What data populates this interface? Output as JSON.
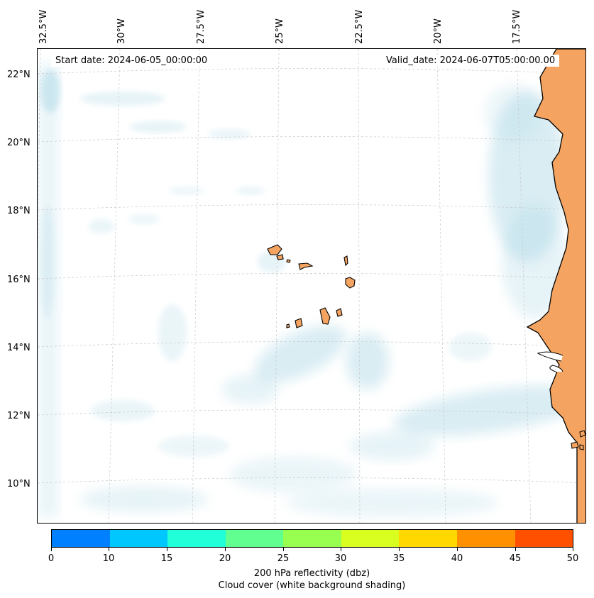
{
  "map": {
    "longitude_labels": [
      "32.5°W",
      "30°W",
      "27.5°W",
      "25°W",
      "22.5°W",
      "20°W",
      "17.5°W"
    ],
    "latitude_labels": [
      "22°N",
      "20°N",
      "18°N",
      "16°N",
      "14°N",
      "12°N",
      "10°N"
    ],
    "start_date_text": "Start date: 2024-06-05_00:00:00",
    "valid_date_text": "Valid_date: 2024-06-07T05:00:00.00",
    "land_color": "#f4a460",
    "cloud_color": "#add8e6",
    "gridlines": true
  },
  "colorbar": {
    "ticks": [
      "0",
      "10",
      "15",
      "20",
      "25",
      "30",
      "35",
      "40",
      "45",
      "50"
    ],
    "colors": [
      "#0080ff",
      "#00c8ff",
      "#20ffd8",
      "#60ff90",
      "#98ff50",
      "#d8ff20",
      "#ffd800",
      "#ff9000",
      "#ff5000"
    ],
    "label": "200 hPa reflectivity (dbz)",
    "sublabel": "Cloud cover (white background shading)"
  }
}
